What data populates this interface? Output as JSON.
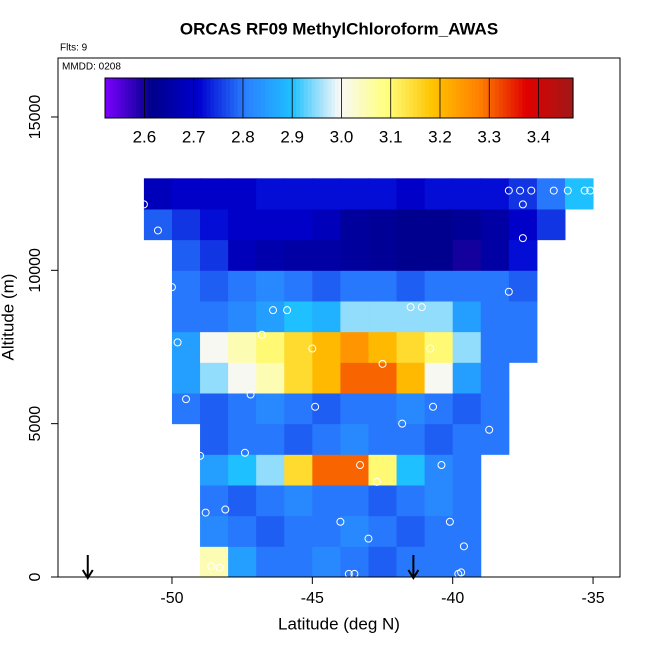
{
  "chart_data": {
    "type": "heatmap",
    "title": "ORCAS RF09 MethylChloroform_AWAS",
    "annotations": [
      "Flts: 9",
      "MMDD: 0208"
    ],
    "xlabel": "Latitude (deg N)",
    "ylabel": "Altitude (m)",
    "xlim": [
      -54.06,
      -34.04
    ],
    "ylim": [
      0,
      16923
    ],
    "xticks": [
      -50,
      -45,
      -40,
      -35
    ],
    "yticks": [
      0,
      5000,
      10000,
      15000
    ],
    "x_edges": [
      -51,
      -50,
      -49,
      -48,
      -47,
      -46,
      -45,
      -44,
      -43,
      -42,
      -41,
      -40,
      -39,
      -38,
      -37,
      -36,
      -35
    ],
    "y_edges": [
      0,
      1000,
      2000,
      3000,
      4000,
      5000,
      6000,
      7000,
      8000,
      9000,
      10000,
      11000,
      12000,
      13000
    ],
    "z": [
      [
        null,
        null,
        3.05,
        2.85,
        2.8,
        2.8,
        2.82,
        2.8,
        2.78,
        2.8,
        2.8,
        2.8,
        null,
        null,
        null,
        null
      ],
      [
        null,
        null,
        2.82,
        2.8,
        2.78,
        2.8,
        2.8,
        2.82,
        2.8,
        2.78,
        2.8,
        2.8,
        null,
        null,
        null,
        null
      ],
      [
        null,
        null,
        2.8,
        2.78,
        2.8,
        2.82,
        2.8,
        2.8,
        2.78,
        2.8,
        2.82,
        2.8,
        null,
        null,
        null,
        null
      ],
      [
        null,
        null,
        2.85,
        2.9,
        2.95,
        3.15,
        3.3,
        3.3,
        3.1,
        2.9,
        2.82,
        2.8,
        null,
        null,
        null,
        null
      ],
      [
        null,
        null,
        2.78,
        2.8,
        2.8,
        2.78,
        2.8,
        2.82,
        2.8,
        2.8,
        2.78,
        2.8,
        2.8,
        null,
        null,
        null
      ],
      [
        null,
        2.8,
        2.78,
        2.8,
        2.82,
        2.8,
        2.78,
        2.8,
        2.8,
        2.82,
        2.8,
        2.78,
        2.8,
        null,
        null,
        null
      ],
      [
        null,
        2.85,
        2.95,
        3.0,
        3.05,
        3.15,
        3.2,
        3.3,
        3.3,
        3.2,
        3.0,
        2.85,
        2.8,
        null,
        null,
        null
      ],
      [
        null,
        2.85,
        3.0,
        3.05,
        3.1,
        3.15,
        3.2,
        3.25,
        3.2,
        3.15,
        3.1,
        2.95,
        2.8,
        2.8,
        null,
        null
      ],
      [
        null,
        2.8,
        2.8,
        2.82,
        2.85,
        2.9,
        2.88,
        2.95,
        2.95,
        2.95,
        2.95,
        2.85,
        2.8,
        2.8,
        null,
        null
      ],
      [
        null,
        2.8,
        2.78,
        2.8,
        2.82,
        2.8,
        2.78,
        2.8,
        2.8,
        2.78,
        2.8,
        2.8,
        2.8,
        2.78,
        null,
        null
      ],
      [
        null,
        2.78,
        2.75,
        2.68,
        2.66,
        2.65,
        2.65,
        2.64,
        2.63,
        2.62,
        2.62,
        2.6,
        2.65,
        2.72,
        null,
        null
      ],
      [
        2.78,
        2.75,
        2.72,
        2.7,
        2.7,
        2.7,
        2.68,
        2.64,
        2.63,
        2.62,
        2.62,
        2.63,
        2.65,
        2.7,
        2.75,
        null
      ],
      [
        2.68,
        2.7,
        2.7,
        2.7,
        2.72,
        2.72,
        2.72,
        2.72,
        2.72,
        2.7,
        2.72,
        2.72,
        2.72,
        2.75,
        2.8,
        2.9
      ]
    ],
    "zlim": [
      2.52,
      3.47
    ],
    "zticks": [
      2.6,
      2.7,
      2.8,
      2.9,
      {
        "value": 3,
        "label": "3.0"
      },
      3.1,
      3.2,
      3.3,
      3.4
    ],
    "colormap": [
      "#7b00ff",
      "#00008b",
      "#0000d0",
      "#2a7fff",
      "#1ec0ff",
      "#f8f8f8",
      "#ffff80",
      "#ffc400",
      "#ff8000",
      "#e00000",
      "#a01818"
    ],
    "points": {
      "x": [
        -51,
        -50.5,
        -50,
        -49.8,
        -49.5,
        -49,
        -48.8,
        -48.6,
        -48.3,
        -47.4,
        -48.1,
        -47.2,
        -46.8,
        -46.4,
        -45.9,
        -45,
        -44.9,
        -44,
        -43.7,
        -43.5,
        -43.3,
        -43,
        -42.7,
        -42.5,
        -41.8,
        -41.5,
        -41.1,
        -40.8,
        -40.7,
        -40.4,
        -40.1,
        -39.8,
        -39.7,
        -39.6,
        -38.7,
        -38,
        -37.5,
        -37.5,
        -38,
        -37.6,
        -37.2,
        -36.4,
        -35.9,
        -35.3,
        -35.1
      ],
      "y": [
        12150,
        11300,
        9450,
        7650,
        5800,
        3950,
        2100,
        350,
        300,
        4050,
        2200,
        5950,
        7900,
        8700,
        8700,
        7450,
        5550,
        1800,
        100,
        100,
        3650,
        1250,
        3100,
        6950,
        5000,
        8800,
        8800,
        7450,
        5550,
        3650,
        1800,
        100,
        150,
        1000,
        4800,
        9300,
        11050,
        12150,
        12600,
        12600,
        12600,
        12600,
        12600,
        12600,
        12600
      ]
    },
    "arrows_x": [
      -53,
      -41.4
    ]
  }
}
